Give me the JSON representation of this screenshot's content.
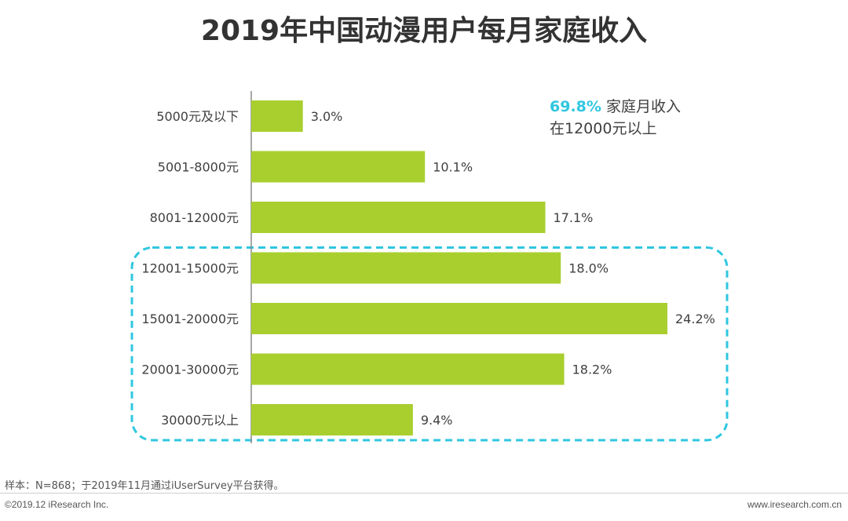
{
  "chart_data": {
    "type": "bar",
    "orientation": "horizontal",
    "title": "2019年中国动漫用户每月家庭收入",
    "categories": [
      "5000元及以下",
      "5001-8000元",
      "8001-12000元",
      "12001-15000元",
      "15001-20000元",
      "20001-30000元",
      "30000元以上"
    ],
    "values": [
      3.0,
      10.1,
      17.1,
      18.0,
      24.2,
      18.2,
      9.4
    ],
    "value_labels": [
      "3.0%",
      "10.1%",
      "17.1%",
      "18.0%",
      "24.2%",
      "18.2%",
      "9.4%"
    ],
    "unit": "%",
    "xlim": [
      0,
      25
    ],
    "bar_color": "#a9cf2f",
    "highlight": {
      "categories": [
        "12001-15000元",
        "15001-20000元",
        "20001-30000元",
        "30000元以上"
      ],
      "color": "#2fc7e0",
      "style": "dashed-rounded-box"
    },
    "annotation": {
      "value": "69.8%",
      "line1": "家庭月收入",
      "line2": "在12000元以上"
    }
  },
  "footer": {
    "source": "样本：N=868；于2019年11月通过iUserSurvey平台获得。",
    "copyright": "©2019.12 iResearch Inc.",
    "website": "www.iresearch.com.cn"
  }
}
